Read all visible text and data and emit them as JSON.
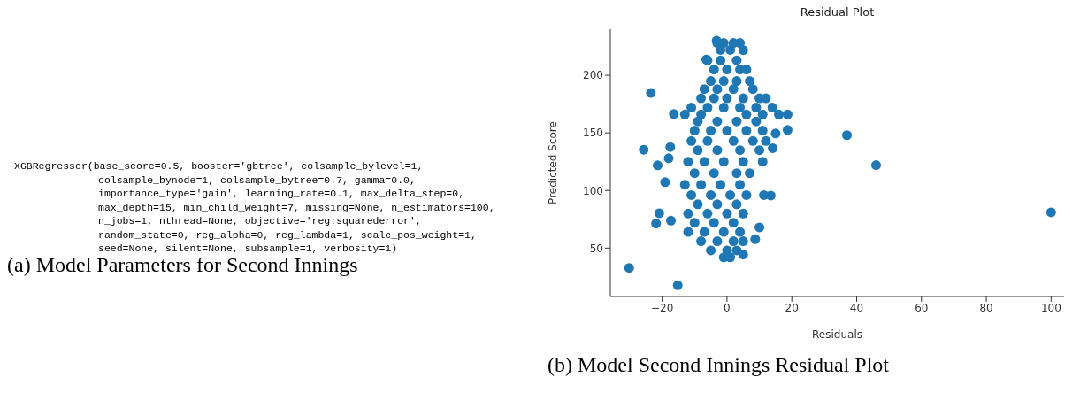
{
  "chart_data": [
    {
      "type": "other",
      "title": "(a) Model Parameters for Second Innings",
      "annotations": [
        "XGBRegressor(base_score=0.5, booster='gbtree', colsample_bylevel=1,",
        "colsample_bynode=1, colsample_bytree=0.7, gamma=0.0,",
        "importance_type='gain', learning_rate=0.1, max_delta_step=0,",
        "max_depth=15, min_child_weight=7, missing=None, n_estimators=100,",
        "n_jobs=1, nthread=None, objective='reg:squarederror',",
        "random_state=0, reg_alpha=0, reg_lambda=1, scale_pos_weight=1,",
        "seed=None, silent=None, subsample=1, verbosity=1)"
      ]
    },
    {
      "type": "scatter",
      "title": "Residual Plot",
      "xlabel": "Residuals",
      "ylabel": "Predicted Score",
      "annotations": [
        "(b) Model Second Innings Residual Plot"
      ],
      "xlim": [
        -36,
        104
      ],
      "ylim": [
        8,
        240
      ],
      "xticks": [
        {
          "value": -20,
          "label": "−20"
        },
        0,
        20,
        40,
        60,
        80,
        100
      ],
      "yticks": [
        50,
        100,
        150,
        200
      ],
      "marker": "circle",
      "color": "#1f77b4",
      "x": [
        -23.5,
        -25.7,
        -21.4,
        -30.2,
        -15.2,
        -20.9,
        -21.9,
        -19.1,
        -16.4,
        -17.5,
        -18,
        -17.3,
        18.7,
        18.7,
        15,
        14.1,
        10,
        8.7,
        5,
        11.4,
        13.5,
        37,
        46,
        100,
        -3.2,
        -6.4,
        5,
        -3,
        -1,
        2,
        4,
        -2,
        1,
        -6,
        -2,
        3,
        -4,
        0,
        4,
        6,
        -5,
        -1,
        3,
        7,
        -7,
        -3,
        2,
        8,
        -8,
        -4,
        0,
        5,
        10,
        12,
        -11,
        -6,
        -1,
        4,
        9,
        14,
        -13,
        -8,
        6,
        11,
        16,
        -9,
        -3,
        3,
        9,
        -10,
        -5,
        0,
        6,
        11,
        -11,
        -6,
        2,
        8,
        12,
        -9,
        -3,
        4,
        10,
        -12,
        -7,
        -1,
        5,
        11,
        -10,
        -4,
        3,
        7,
        -13,
        -8,
        -2,
        4,
        -11,
        -5,
        1,
        6,
        -9,
        -3,
        3,
        -12,
        -6,
        0,
        5,
        -10,
        -4,
        2,
        -12,
        -7,
        -1,
        4,
        -8,
        -3,
        2,
        5,
        -5,
        0,
        3,
        -1,
        1
      ],
      "values": [
        184.6,
        135.4,
        121.8,
        32.8,
        17.7,
        80.3,
        71.3,
        107.2,
        166.4,
        137.7,
        128,
        73.8,
        152.6,
        166,
        149.5,
        136.7,
        68,
        57.7,
        44.4,
        96,
        95.6,
        148,
        122,
        81,
        230,
        213.6,
        221.8,
        228,
        228,
        228,
        228,
        222,
        222,
        213,
        213,
        213,
        205,
        205,
        205,
        205,
        195,
        195,
        195,
        195,
        188,
        188,
        188,
        188,
        180,
        180,
        180,
        180,
        180,
        180,
        172,
        172,
        172,
        172,
        172,
        172,
        166,
        166,
        166,
        166,
        166,
        160,
        160,
        160,
        160,
        152,
        152,
        152,
        152,
        152,
        143,
        143,
        143,
        143,
        143,
        135,
        135,
        135,
        135,
        125,
        125,
        125,
        125,
        125,
        115,
        115,
        115,
        115,
        105,
        105,
        105,
        105,
        96,
        96,
        96,
        96,
        88,
        88,
        88,
        80,
        80,
        80,
        80,
        72,
        72,
        72,
        64,
        64,
        64,
        64,
        56,
        56,
        56,
        56,
        48,
        48,
        48,
        42,
        42
      ]
    }
  ]
}
